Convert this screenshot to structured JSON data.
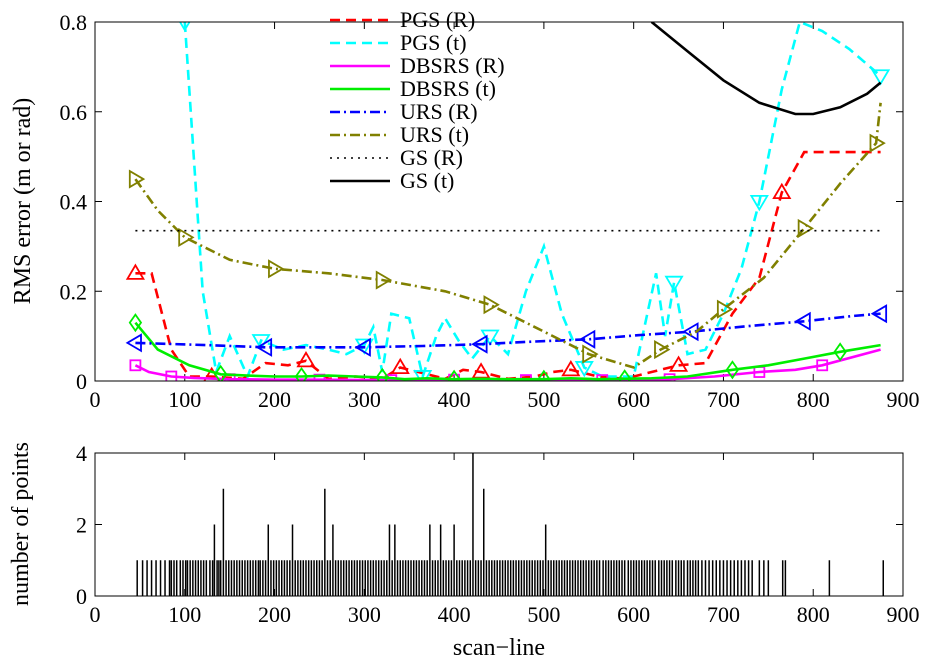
{
  "chart_data": [
    {
      "type": "line",
      "ylabel": "RMS error (m or rad)",
      "xlim": [
        0,
        900
      ],
      "ylim": [
        0,
        0.8
      ],
      "xticks": [
        "0",
        "100",
        "200",
        "300",
        "400",
        "500",
        "600",
        "700",
        "800",
        "900"
      ],
      "yticks": [
        "0",
        "0.2",
        "0.4",
        "0.6",
        "0.8"
      ],
      "legend_position": "top-center",
      "series": [
        {
          "name": "PGS (R)",
          "color": "#ff0000",
          "dash": "dashed",
          "marker": "triangle-up",
          "x": [
            45,
            63,
            85,
            105,
            130,
            165,
            190,
            215,
            235,
            260,
            290,
            320,
            340,
            360,
            390,
            410,
            430,
            460,
            490,
            510,
            530,
            560,
            590,
            620,
            650,
            680,
            710,
            740,
            765,
            790,
            830,
            875
          ],
          "y": [
            0.24,
            0.24,
            0.07,
            0.01,
            0.01,
            0.005,
            0.04,
            0.035,
            0.045,
            0.005,
            0.01,
            0.005,
            0.03,
            0.02,
            0.005,
            0.025,
            0.02,
            0.005,
            0.01,
            0.02,
            0.025,
            0.01,
            0.005,
            0.02,
            0.035,
            0.04,
            0.15,
            0.23,
            0.42,
            0.51,
            0.51,
            0.51
          ]
        },
        {
          "name": "PGS (t)",
          "color": "#00ffff",
          "dash": "dashed",
          "marker": "triangle-down",
          "x": [
            100,
            120,
            135,
            150,
            170,
            185,
            210,
            235,
            260,
            280,
            300,
            310,
            320,
            330,
            350,
            365,
            380,
            390,
            405,
            420,
            440,
            460,
            480,
            500,
            520,
            545,
            565,
            600,
            625,
            635,
            645,
            660,
            680,
            700,
            720,
            740,
            765,
            785,
            810,
            840,
            875
          ],
          "y": [
            0.8,
            0.2,
            0.02,
            0.1,
            0.01,
            0.09,
            0.07,
            0.08,
            0.07,
            0.06,
            0.08,
            0.12,
            0.02,
            0.15,
            0.14,
            0.01,
            0.1,
            0.14,
            0.09,
            0.05,
            0.1,
            0.06,
            0.2,
            0.3,
            0.15,
            0.03,
            0.01,
            0.01,
            0.24,
            0.1,
            0.22,
            0.06,
            0.07,
            0.15,
            0.25,
            0.4,
            0.65,
            0.8,
            0.78,
            0.74,
            0.68
          ]
        },
        {
          "name": "DBSRS (R)",
          "color": "#ff00ff",
          "dash": "solid",
          "marker": "square",
          "x": [
            45,
            60,
            85,
            110,
            150,
            200,
            250,
            300,
            330,
            350,
            400,
            440,
            480,
            520,
            565,
            600,
            640,
            690,
            740,
            780,
            810,
            875
          ],
          "y": [
            0.035,
            0.02,
            0.01,
            0.007,
            0.004,
            0.003,
            0.003,
            0.002,
            0.002,
            0.002,
            0.003,
            0.002,
            0.002,
            0.003,
            0.002,
            0.002,
            0.004,
            0.01,
            0.02,
            0.025,
            0.035,
            0.07
          ]
        },
        {
          "name": "DBSRS (t)",
          "color": "#00ee00",
          "dash": "solid",
          "marker": "diamond",
          "x": [
            45,
            70,
            105,
            140,
            170,
            200,
            230,
            260,
            290,
            320,
            345,
            370,
            400,
            430,
            465,
            500,
            530,
            560,
            590,
            620,
            660,
            710,
            750,
            790,
            830,
            875
          ],
          "y": [
            0.13,
            0.07,
            0.035,
            0.015,
            0.012,
            0.01,
            0.01,
            0.012,
            0.01,
            0.008,
            0.004,
            0.006,
            0.004,
            0.005,
            0.004,
            0.004,
            0.006,
            0.004,
            0.005,
            0.006,
            0.01,
            0.025,
            0.035,
            0.05,
            0.065,
            0.08
          ]
        },
        {
          "name": "URS (R)",
          "color": "#0000ff",
          "dash": "dashdot",
          "marker": "triangle-left",
          "x": [
            45,
            125,
            190,
            245,
            300,
            365,
            430,
            490,
            550,
            605,
            665,
            725,
            790,
            845,
            875
          ],
          "y": [
            0.085,
            0.08,
            0.075,
            0.075,
            0.075,
            0.078,
            0.082,
            0.088,
            0.093,
            0.102,
            0.11,
            0.122,
            0.133,
            0.145,
            0.15
          ]
        },
        {
          "name": "URS (t)",
          "color": "#808000",
          "dash": "dashdot",
          "marker": "triangle-right",
          "x": [
            45,
            70,
            100,
            150,
            200,
            260,
            320,
            390,
            440,
            500,
            550,
            600,
            630,
            670,
            700,
            745,
            790,
            830,
            870,
            875
          ],
          "y": [
            0.45,
            0.38,
            0.32,
            0.27,
            0.25,
            0.24,
            0.225,
            0.2,
            0.17,
            0.11,
            0.06,
            0.03,
            0.07,
            0.11,
            0.16,
            0.23,
            0.34,
            0.44,
            0.53,
            0.62
          ]
        },
        {
          "name": "GS (R)",
          "color": "#000000",
          "dash": "dotted",
          "marker": "none",
          "x": [
            45,
            875
          ],
          "y": [
            0.335,
            0.335
          ]
        },
        {
          "name": "GS (t)",
          "color": "#000000",
          "dash": "solid",
          "marker": "none",
          "x": [
            620,
            660,
            700,
            740,
            780,
            800,
            830,
            860,
            875
          ],
          "y": [
            0.8,
            0.735,
            0.67,
            0.62,
            0.595,
            0.595,
            0.61,
            0.64,
            0.665
          ]
        }
      ]
    },
    {
      "type": "bar",
      "xlabel": "scan−line",
      "ylabel": "number of points",
      "xlim": [
        0,
        900
      ],
      "ylim": [
        0,
        4
      ],
      "xticks": [
        "0",
        "100",
        "200",
        "300",
        "400",
        "500",
        "600",
        "700",
        "800",
        "900"
      ],
      "yticks": [
        "0",
        "2",
        "4"
      ],
      "x": [
        47,
        53,
        58,
        63,
        68,
        73,
        78,
        83,
        85,
        88,
        91,
        95,
        98,
        101,
        103,
        106,
        109,
        112,
        115,
        118,
        121,
        124,
        128,
        131,
        133,
        136,
        138,
        140,
        143,
        146,
        149,
        152,
        155,
        158,
        161,
        164,
        167,
        170,
        173,
        176,
        179,
        182,
        184,
        187,
        190,
        193,
        196,
        199,
        202,
        205,
        208,
        211,
        214,
        217,
        220,
        223,
        226,
        229,
        232,
        235,
        238,
        241,
        244,
        247,
        250,
        253,
        256,
        259,
        262,
        265,
        268,
        271,
        274,
        277,
        280,
        283,
        286,
        289,
        292,
        295,
        298,
        301,
        304,
        307,
        310,
        313,
        316,
        319,
        322,
        325,
        328,
        331,
        334,
        337,
        340,
        343,
        346,
        349,
        352,
        355,
        358,
        361,
        364,
        367,
        370,
        373,
        376,
        379,
        382,
        385,
        388,
        391,
        394,
        397,
        400,
        403,
        406,
        409,
        412,
        415,
        418,
        421,
        424,
        427,
        430,
        433,
        436,
        439,
        442,
        445,
        448,
        451,
        454,
        457,
        460,
        463,
        466,
        469,
        472,
        475,
        478,
        481,
        484,
        487,
        490,
        493,
        496,
        499,
        502,
        505,
        508,
        511,
        514,
        517,
        520,
        523,
        526,
        529,
        532,
        535,
        538,
        541,
        544,
        547,
        550,
        553,
        556,
        559,
        562,
        566,
        569,
        572,
        575,
        578,
        581,
        584,
        587,
        590,
        594,
        597,
        600,
        603,
        606,
        609,
        612,
        615,
        618,
        621,
        624,
        628,
        631,
        634,
        637,
        640,
        643,
        647,
        650,
        653,
        656,
        660,
        663,
        666,
        669,
        672,
        676,
        680,
        684,
        688,
        692,
        696,
        700,
        704,
        708,
        712,
        716,
        720,
        724,
        728,
        732,
        740,
        745,
        750,
        766,
        769,
        818,
        878
      ],
      "values": [
        1,
        1,
        1,
        1,
        1,
        1,
        1,
        1,
        1,
        1,
        1,
        1,
        1,
        1,
        1,
        1,
        1,
        1,
        1,
        1,
        1,
        1,
        1,
        1,
        2,
        1,
        1,
        1,
        3,
        1,
        1,
        1,
        1,
        1,
        1,
        1,
        1,
        1,
        1,
        1,
        1,
        1,
        1,
        1,
        1,
        2,
        1,
        1,
        1,
        1,
        1,
        1,
        1,
        1,
        2,
        1,
        1,
        1,
        1,
        1,
        1,
        1,
        1,
        1,
        1,
        1,
        3,
        1,
        1,
        2,
        1,
        1,
        1,
        1,
        1,
        1,
        1,
        1,
        1,
        1,
        1,
        1,
        1,
        1,
        1,
        1,
        1,
        1,
        1,
        1,
        2,
        1,
        2,
        1,
        1,
        1,
        1,
        1,
        1,
        1,
        1,
        1,
        1,
        1,
        1,
        2,
        1,
        1,
        1,
        2,
        1,
        1,
        1,
        1,
        2,
        1,
        1,
        1,
        1,
        1,
        1,
        4,
        1,
        1,
        1,
        3,
        1,
        1,
        1,
        1,
        1,
        1,
        1,
        1,
        1,
        1,
        1,
        1,
        1,
        1,
        1,
        1,
        1,
        1,
        1,
        1,
        1,
        1,
        2,
        1,
        1,
        1,
        1,
        1,
        1,
        1,
        1,
        1,
        1,
        1,
        1,
        1,
        1,
        1,
        1,
        1,
        1,
        1,
        1,
        1,
        1,
        1,
        1,
        1,
        1,
        1,
        1,
        1,
        1,
        1,
        1,
        1,
        1,
        1,
        1,
        1,
        1,
        1,
        1,
        1,
        1,
        1,
        1,
        1,
        1,
        1,
        1,
        1,
        1,
        1,
        1,
        1,
        1,
        1,
        1,
        1,
        1,
        1,
        1,
        1,
        1,
        1,
        1,
        1,
        1,
        1,
        1,
        1,
        1,
        1,
        1,
        1,
        1,
        1,
        1,
        1
      ]
    }
  ]
}
